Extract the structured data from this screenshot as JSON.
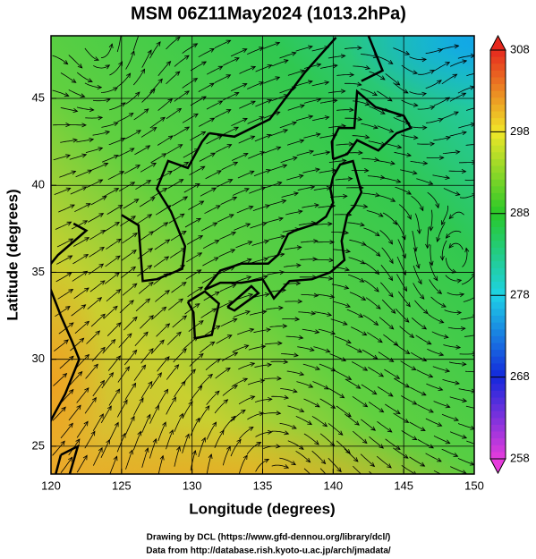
{
  "title": "MSM 06Z11May2024 (1013.2hPa)",
  "x_axis": {
    "label": "Longitude (degrees)",
    "lim": [
      120,
      150
    ],
    "ticks": [
      120,
      125,
      130,
      135,
      140,
      145,
      150
    ]
  },
  "y_axis": {
    "label": "Latitude  (degrees)",
    "lim": [
      23.4,
      48.6
    ],
    "ticks": [
      25,
      30,
      35,
      40,
      45
    ]
  },
  "colorbar": {
    "lim": [
      258,
      308
    ],
    "ticks": [
      258,
      268,
      278,
      288,
      298,
      308
    ]
  },
  "footer": [
    "Drawing by DCL (https://www.gfd-dennou.org/library/dcl/)",
    "Data from http://database.rish.kyoto-u.ac.jp/arch/jmadata/"
  ]
}
